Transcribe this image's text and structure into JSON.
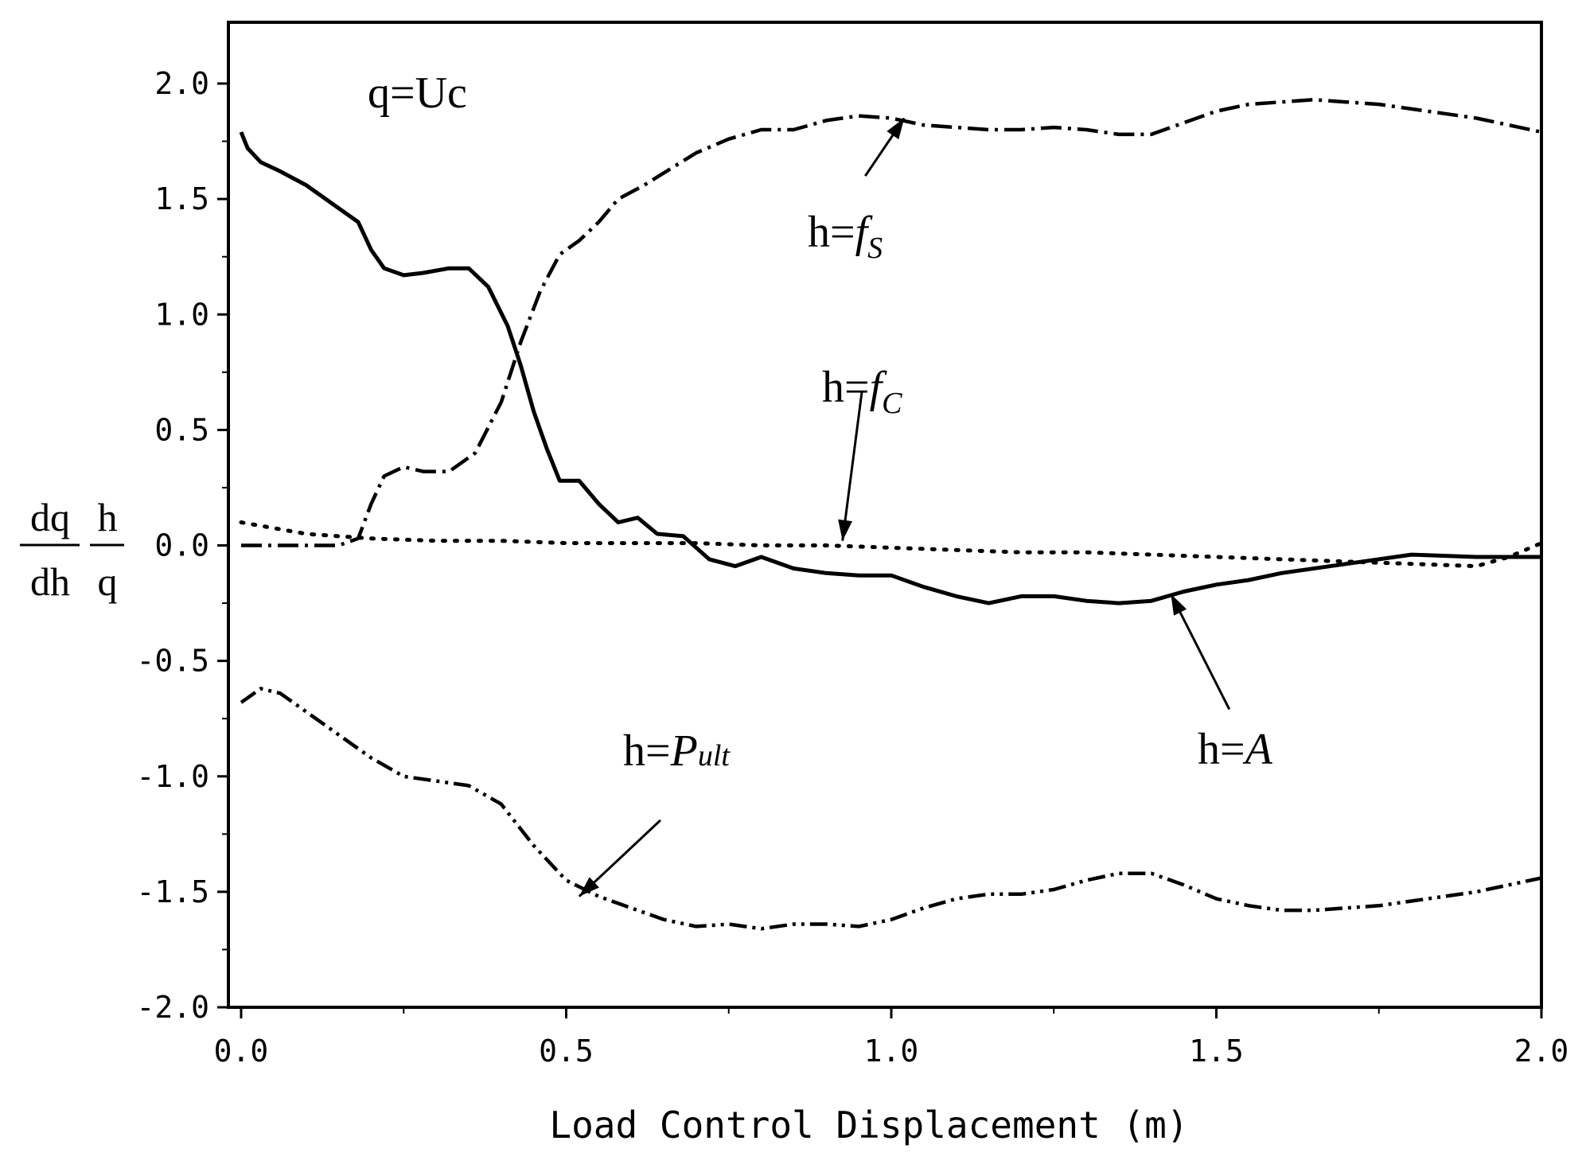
{
  "chart_data": {
    "type": "line",
    "title": "",
    "xlabel": "Load Control Displacement (m)",
    "ylabel": {
      "frac1_num": "dq",
      "frac1_den": "dh",
      "frac2_num": "h",
      "frac2_den": "q"
    },
    "xlim": [
      0.0,
      2.0
    ],
    "ylim": [
      -2.0,
      2.25
    ],
    "x_ticks": [
      {
        "value": 0.0,
        "label": "0.0"
      },
      {
        "value": 0.5,
        "label": "0.5"
      },
      {
        "value": 1.0,
        "label": "1.0"
      },
      {
        "value": 1.5,
        "label": "1.5"
      },
      {
        "value": 2.0,
        "label": "2.0"
      }
    ],
    "y_ticks": [
      {
        "value": 2.0,
        "label": "2.0"
      },
      {
        "value": 1.5,
        "label": "1.5"
      },
      {
        "value": 1.0,
        "label": "1.0"
      },
      {
        "value": 0.5,
        "label": "0.5"
      },
      {
        "value": 0.0,
        "label": "0.0"
      },
      {
        "value": -0.5,
        "label": "-0.5"
      },
      {
        "value": -1.0,
        "label": "-1.0"
      },
      {
        "value": -1.5,
        "label": "-1.5"
      },
      {
        "value": -2.0,
        "label": "-2.0"
      }
    ],
    "grid": false,
    "legend": "none",
    "note": "q=Uc",
    "series": [
      {
        "label_main": "h=",
        "label_symbol": "f",
        "label_sub": "S",
        "style": "dashdot",
        "x": [
          0.0,
          0.05,
          0.1,
          0.15,
          0.18,
          0.2,
          0.22,
          0.25,
          0.28,
          0.32,
          0.36,
          0.4,
          0.43,
          0.46,
          0.49,
          0.52,
          0.55,
          0.58,
          0.62,
          0.66,
          0.7,
          0.75,
          0.8,
          0.85,
          0.9,
          0.95,
          1.0,
          1.05,
          1.1,
          1.15,
          1.2,
          1.25,
          1.3,
          1.35,
          1.4,
          1.45,
          1.5,
          1.55,
          1.6,
          1.65,
          1.7,
          1.75,
          1.8,
          1.85,
          1.9,
          1.95,
          2.0
        ],
        "y": [
          0.0,
          0.0,
          0.0,
          0.0,
          0.03,
          0.18,
          0.3,
          0.34,
          0.32,
          0.32,
          0.4,
          0.62,
          0.88,
          1.1,
          1.26,
          1.32,
          1.4,
          1.5,
          1.56,
          1.63,
          1.7,
          1.76,
          1.8,
          1.8,
          1.84,
          1.86,
          1.85,
          1.82,
          1.81,
          1.8,
          1.8,
          1.81,
          1.8,
          1.78,
          1.78,
          1.83,
          1.88,
          1.91,
          1.92,
          1.93,
          1.92,
          1.91,
          1.89,
          1.87,
          1.85,
          1.82,
          1.79
        ]
      },
      {
        "label_main": "h=",
        "label_symbol": "f",
        "label_sub": "C",
        "style": "dotted",
        "x": [
          0.0,
          0.1,
          0.2,
          0.3,
          0.4,
          0.5,
          0.6,
          0.7,
          0.8,
          0.9,
          1.0,
          1.1,
          1.2,
          1.3,
          1.4,
          1.5,
          1.6,
          1.7,
          1.8,
          1.9,
          1.95,
          2.0
        ],
        "y": [
          0.1,
          0.05,
          0.03,
          0.02,
          0.02,
          0.01,
          0.01,
          0.01,
          0.0,
          0.0,
          -0.01,
          -0.02,
          -0.03,
          -0.03,
          -0.04,
          -0.05,
          -0.06,
          -0.07,
          -0.08,
          -0.09,
          -0.05,
          0.01
        ]
      },
      {
        "label_main": "h=",
        "label_symbol": "A",
        "label_sub": "",
        "style": "solid",
        "x": [
          0.0,
          0.01,
          0.03,
          0.06,
          0.1,
          0.14,
          0.18,
          0.2,
          0.22,
          0.25,
          0.28,
          0.32,
          0.35,
          0.38,
          0.41,
          0.43,
          0.45,
          0.47,
          0.49,
          0.52,
          0.55,
          0.58,
          0.61,
          0.64,
          0.68,
          0.72,
          0.76,
          0.8,
          0.85,
          0.9,
          0.95,
          1.0,
          1.05,
          1.1,
          1.15,
          1.2,
          1.25,
          1.3,
          1.35,
          1.4,
          1.45,
          1.5,
          1.55,
          1.6,
          1.7,
          1.8,
          1.9,
          2.0
        ],
        "y": [
          1.79,
          1.72,
          1.66,
          1.62,
          1.56,
          1.48,
          1.4,
          1.28,
          1.2,
          1.17,
          1.18,
          1.2,
          1.2,
          1.12,
          0.95,
          0.78,
          0.58,
          0.42,
          0.28,
          0.28,
          0.18,
          0.1,
          0.12,
          0.05,
          0.04,
          -0.06,
          -0.09,
          -0.05,
          -0.1,
          -0.12,
          -0.13,
          -0.13,
          -0.18,
          -0.22,
          -0.25,
          -0.22,
          -0.22,
          -0.24,
          -0.25,
          -0.24,
          -0.2,
          -0.17,
          -0.15,
          -0.12,
          -0.08,
          -0.04,
          -0.05,
          -0.05
        ]
      },
      {
        "label_main": "h=",
        "label_symbol": "P",
        "label_sub": "ult",
        "style": "dashdotdot",
        "x": [
          0.0,
          0.03,
          0.06,
          0.1,
          0.15,
          0.2,
          0.25,
          0.3,
          0.35,
          0.4,
          0.45,
          0.5,
          0.55,
          0.6,
          0.65,
          0.7,
          0.75,
          0.8,
          0.85,
          0.9,
          0.95,
          1.0,
          1.05,
          1.1,
          1.15,
          1.2,
          1.25,
          1.3,
          1.35,
          1.4,
          1.45,
          1.5,
          1.55,
          1.6,
          1.65,
          1.7,
          1.75,
          1.8,
          1.85,
          1.9,
          1.95,
          2.0
        ],
        "y": [
          -0.68,
          -0.62,
          -0.64,
          -0.72,
          -0.82,
          -0.92,
          -1.0,
          -1.02,
          -1.04,
          -1.12,
          -1.3,
          -1.45,
          -1.52,
          -1.57,
          -1.62,
          -1.65,
          -1.64,
          -1.66,
          -1.64,
          -1.64,
          -1.65,
          -1.62,
          -1.57,
          -1.53,
          -1.51,
          -1.51,
          -1.49,
          -1.45,
          -1.42,
          -1.42,
          -1.47,
          -1.53,
          -1.56,
          -1.58,
          -1.58,
          -1.57,
          -1.56,
          -1.54,
          -1.52,
          -1.5,
          -1.47,
          -1.44
        ]
      }
    ]
  }
}
